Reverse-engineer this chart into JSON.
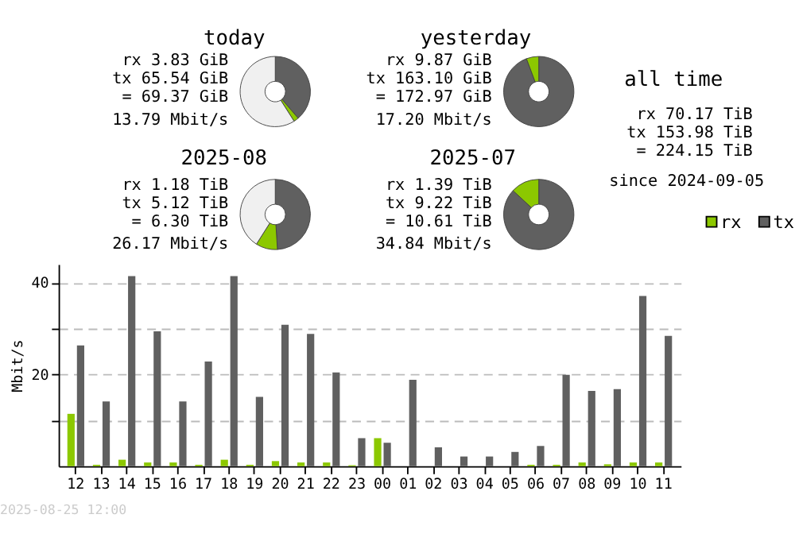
{
  "chart_data": [
    {
      "type": "donut",
      "title": "today",
      "categories": [
        null,
        null,
        null
      ],
      "values": [
        38.7,
        2.3,
        59
      ],
      "colors": [
        "#606060",
        "#8cc800",
        "#f0f0f0"
      ],
      "annotations": [
        "rx 3.83 GiB",
        "tx 65.54 GiB",
        "= 69.37 GiB",
        "13.79 Mbit/s"
      ]
    },
    {
      "type": "donut",
      "title": "yesterday",
      "categories": [
        null,
        null
      ],
      "values": [
        94.3,
        5.7
      ],
      "colors": [
        "#606060",
        "#8cc800"
      ],
      "annotations": [
        "rx 9.87 GiB",
        "tx 163.10 GiB",
        "= 172.97 GiB",
        "17.20 Mbit/s"
      ]
    },
    {
      "type": "other",
      "title": "all time",
      "annotations": [
        "rx 70.17 TiB",
        "tx 153.98 TiB",
        "= 224.15 TiB",
        "since 2024-09-05"
      ]
    },
    {
      "type": "donut",
      "title": "2025-08",
      "categories": [
        null,
        null,
        null
      ],
      "values": [
        49,
        10,
        41
      ],
      "colors": [
        "#606060",
        "#8cc800",
        "#f0f0f0"
      ],
      "annotations": [
        "rx 1.18 TiB",
        "tx 5.12 TiB",
        "= 6.30 TiB",
        "26.17 Mbit/s"
      ]
    },
    {
      "type": "donut",
      "title": "2025-07",
      "categories": [
        null,
        null
      ],
      "values": [
        86.9,
        13.1
      ],
      "colors": [
        "#606060",
        "#8cc800"
      ],
      "annotations": [
        "rx 1.39 TiB",
        "tx 9.22 TiB",
        "= 10.61 TiB",
        "34.84 Mbit/s"
      ]
    },
    {
      "type": "bar",
      "ylabel": "Mbit/s",
      "categories": [
        "12",
        "13",
        "14",
        "15",
        "16",
        "17",
        "18",
        "19",
        "20",
        "21",
        "22",
        "23",
        "00",
        "01",
        "02",
        "03",
        "04",
        "05",
        "06",
        "07",
        "08",
        "09",
        "10",
        "11"
      ],
      "series": [
        {
          "name": "rx",
          "color": "#8cc800",
          "values": [
            11.4,
            0.3,
            1.4,
            0.8,
            0.8,
            0.3,
            1.4,
            0.3,
            1.1,
            0.8,
            0.8,
            0.2,
            6.1,
            0,
            0,
            0,
            0,
            0,
            0.3,
            0.3,
            0.8,
            0.4,
            0.8,
            0.8
          ]
        },
        {
          "name": "tx",
          "color": "#606060",
          "values": [
            26.3,
            14.1,
            41.4,
            29.4,
            14.1,
            22.8,
            41.4,
            15.1,
            30.8,
            28.8,
            20.4,
            6.1,
            5.1,
            18.8,
            4.1,
            2.1,
            2.1,
            3.1,
            4.4,
            19.9,
            16.4,
            16.8,
            37.1,
            28.4
          ]
        }
      ],
      "ylim": [
        0,
        44
      ],
      "yticks": [
        {
          "value": 10,
          "label": null
        },
        20,
        {
          "value": 30,
          "label": null
        },
        40
      ],
      "grid": "y",
      "legend": "top right",
      "annotations": [
        "2025-08-25 12:00"
      ]
    }
  ]
}
